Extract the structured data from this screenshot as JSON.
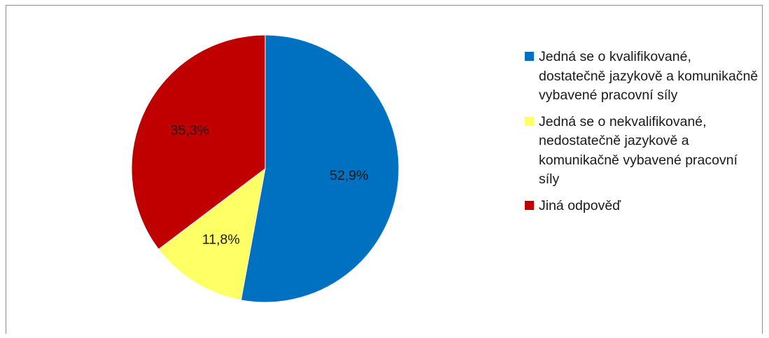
{
  "chart_data": {
    "type": "pie",
    "title": "",
    "categories": [
      "Jedná se o kvalifikované, dostatečně jazykově a komunikačně vybavené pracovní síly",
      "Jedná se o nekvalifikované, nedostatečně jazykově a komunikačně vybavené pracovní síly",
      "Jiná odpověď"
    ],
    "values": [
      52.9,
      11.8,
      35.3
    ],
    "data_labels": [
      "52,9%",
      "11,8%",
      "35,3%"
    ],
    "colors": [
      "#0070C0",
      "#FFFF66",
      "#C00000"
    ],
    "legend_position": "right",
    "start_angle_deg": 0,
    "direction": "clockwise"
  }
}
